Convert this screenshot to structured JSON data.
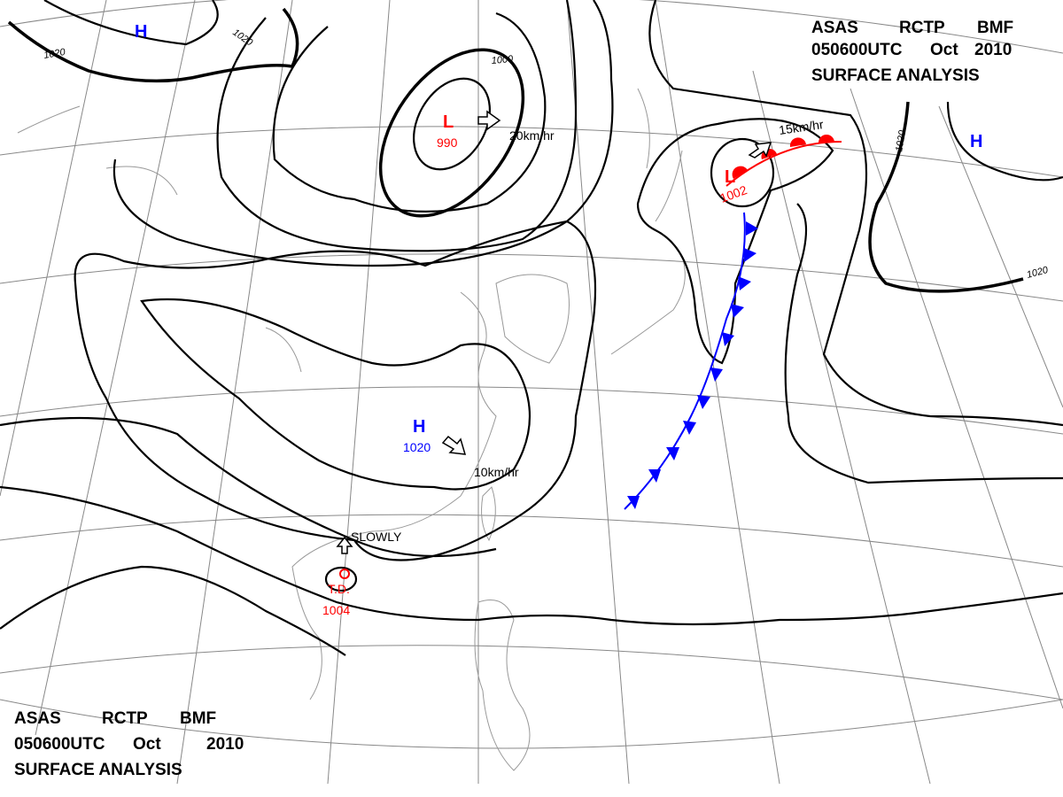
{
  "headers": [
    {
      "line1": [
        "ASAS",
        "RCTP",
        "BMF"
      ],
      "line2": [
        "050600UTC",
        "Oct",
        "2010"
      ],
      "line3": "SURFACE ANALYSIS"
    },
    {
      "line1": [
        "ASAS",
        "RCTP",
        "BMF"
      ],
      "line2": [
        "050600UTC",
        "Oct",
        "2010"
      ],
      "line3": "SURFACE ANALYSIS"
    }
  ],
  "systems": [
    {
      "symbol": "H"
    },
    {
      "symbol": "L",
      "pressure": 990
    },
    {
      "symbol": "L",
      "pressure": 1002
    },
    {
      "symbol": "H",
      "pressure": 1020
    },
    {
      "symbol": "H"
    },
    {
      "symbol": "T.D.",
      "pressure": 1004
    }
  ],
  "isobar_labels": [
    1020,
    1020,
    1000,
    1020,
    1020
  ],
  "motions": [
    "20km/hr",
    "15km/hr",
    "10km/hr",
    "SLOWLY"
  ]
}
